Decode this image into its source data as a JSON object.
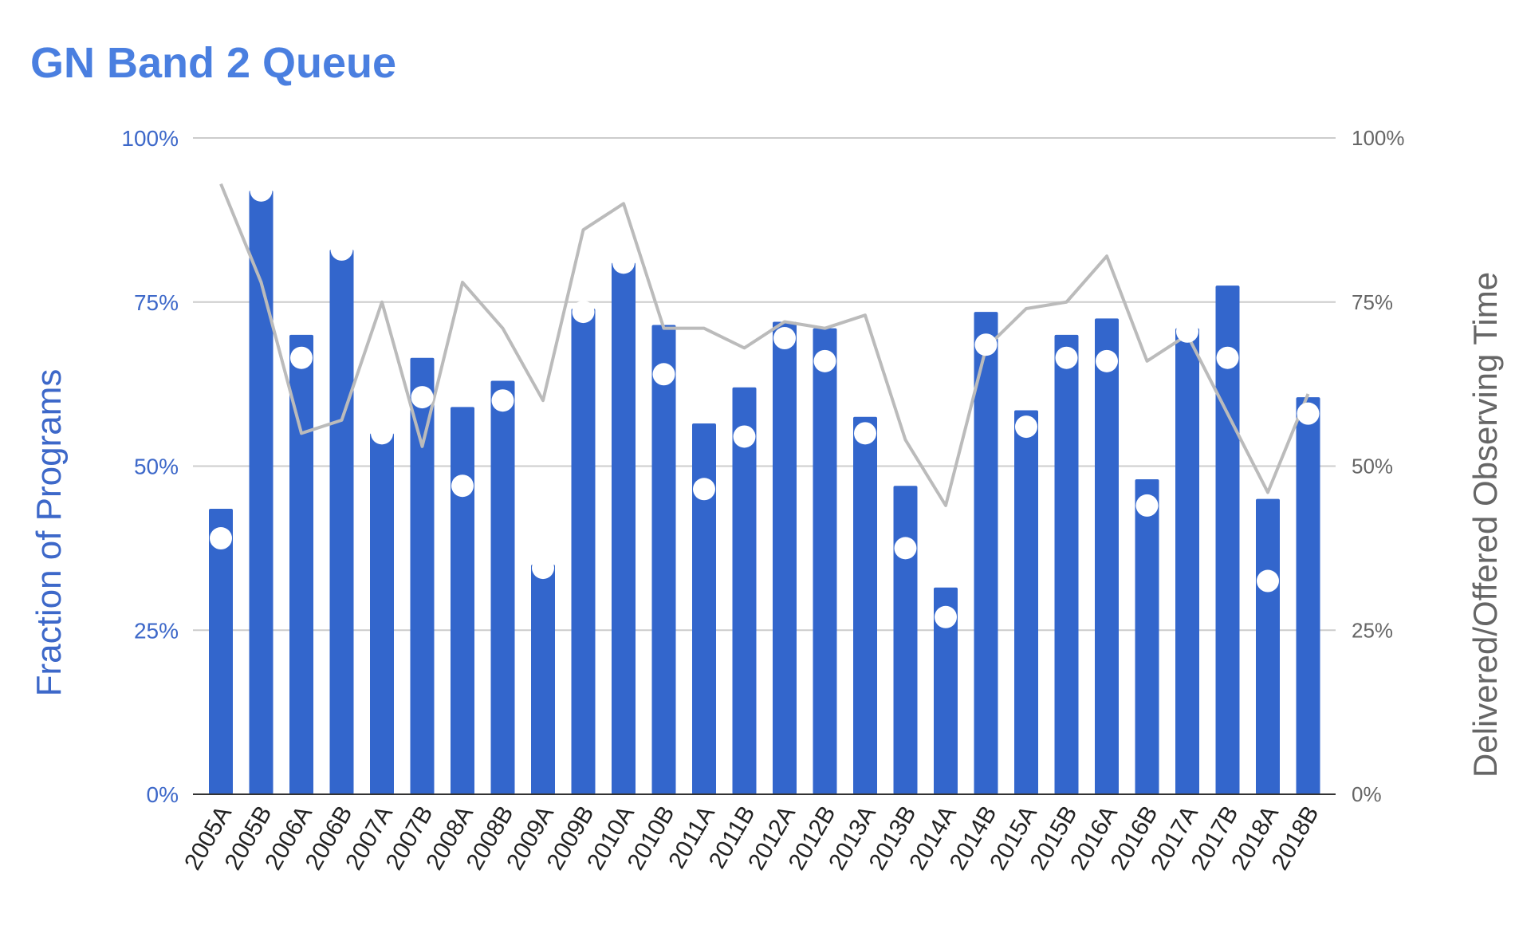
{
  "colors": {
    "title": "#4a7fe0",
    "bars": "#3366cc",
    "left_axis": "#3d68c9",
    "right_axis": "#666666",
    "line": "#bbbbbb",
    "dots": "#ffffff",
    "grid": "#cccccc",
    "baseline": "#333333"
  },
  "chart_data": {
    "type": "bar",
    "title": "GN Band 2 Queue",
    "xlabel": "",
    "ylabel": "Fraction of Programs",
    "y2label": "Delivered/Offered Observing Time",
    "ylim": [
      0,
      100
    ],
    "y2lim": [
      0,
      100
    ],
    "yticks": [
      "0%",
      "25%",
      "50%",
      "75%",
      "100%"
    ],
    "y2ticks": [
      "0%",
      "25%",
      "50%",
      "75%",
      "100%"
    ],
    "grid": true,
    "legend": "none",
    "categories": [
      "2005A",
      "2005B",
      "2006A",
      "2006B",
      "2007A",
      "2007B",
      "2008A",
      "2008B",
      "2009A",
      "2009B",
      "2010A",
      "2010B",
      "2011A",
      "2011B",
      "2012A",
      "2012B",
      "2013A",
      "2013B",
      "2014A",
      "2014B",
      "2015A",
      "2015B",
      "2016A",
      "2016B",
      "2017A",
      "2017B",
      "2018A",
      "2018B"
    ],
    "series": [
      {
        "type": "bar",
        "axis": "left",
        "values": [
          43.5,
          92,
          70,
          83,
          55,
          66.5,
          59,
          63,
          35,
          74,
          81,
          71.5,
          56.5,
          62,
          72,
          71,
          57.5,
          47,
          31.5,
          73.5,
          58.5,
          70,
          72.5,
          48,
          71,
          77.5,
          45,
          60.5
        ]
      },
      {
        "type": "scatter",
        "axis": "left",
        "values": [
          39,
          92,
          66.5,
          83,
          55,
          60.5,
          47,
          60,
          34.5,
          73.5,
          81,
          64,
          46.5,
          54.5,
          69.5,
          66,
          55,
          37.5,
          27,
          68.5,
          56,
          66.5,
          66,
          44,
          70.5,
          66.5,
          32.5,
          58
        ]
      },
      {
        "type": "line",
        "axis": "right",
        "values": [
          93,
          78,
          55,
          57,
          75,
          53,
          78,
          71,
          60,
          86,
          90,
          71,
          71,
          68,
          72,
          71,
          73,
          54,
          44,
          68,
          74,
          75,
          82,
          66,
          70,
          58,
          46,
          61
        ]
      }
    ]
  }
}
